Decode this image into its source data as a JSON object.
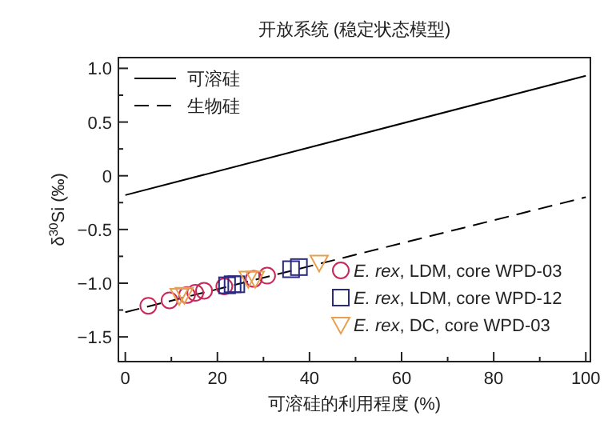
{
  "chart_data": {
    "type": "scatter",
    "title": "开放系统 (稳定状态模型)",
    "xlabel": "可溶硅的利用程度 (%)",
    "ylabel": "δ$^{30}$Si (‰)",
    "xlim": [
      -1.5,
      101
    ],
    "ylim": [
      -1.73,
      1.1
    ],
    "xticks": [
      0,
      {
        "value": 10,
        "label": null
      },
      20,
      {
        "value": 30,
        "label": null
      },
      40,
      {
        "value": 50,
        "label": null
      },
      60,
      {
        "value": 70,
        "label": null
      },
      80,
      {
        "value": 90,
        "label": null
      },
      100
    ],
    "yticks": [
      {
        "value": -1.5,
        "label": "−1.5"
      },
      {
        "value": -1.25,
        "label": null
      },
      {
        "value": -1.0,
        "label": "−1.0"
      },
      {
        "value": -0.75,
        "label": null
      },
      {
        "value": -0.5,
        "label": "−0.5"
      },
      {
        "value": -0.25,
        "label": null
      },
      0,
      {
        "value": 0.25,
        "label": null
      },
      {
        "value": 0.5,
        "label": "0.5"
      },
      {
        "value": 0.75,
        "label": null
      },
      {
        "value": 1.0,
        "label": "1.0"
      }
    ],
    "grid": false,
    "legend": "top left",
    "series": [
      {
        "name": "可溶硅",
        "type": "line",
        "line_style": "solid",
        "color": "#000000",
        "x": [
          0,
          100
        ],
        "values": [
          -0.18,
          0.93
        ]
      },
      {
        "name": "生物硅",
        "type": "line",
        "line_style": "dashed",
        "color": "#000000",
        "x": [
          0,
          100
        ],
        "values": [
          -1.27,
          -0.2
        ]
      },
      {
        "name": "*E. rex*, LDM, core WPD-03",
        "marker": "circle",
        "color": "#c8285a",
        "x": [
          5.0,
          9.6,
          13.4,
          15.2,
          17.1,
          21.5,
          27.9,
          30.8
        ],
        "values": [
          -1.21,
          -1.16,
          -1.11,
          -1.09,
          -1.07,
          -1.03,
          -0.96,
          -0.93
        ]
      },
      {
        "name": "*E. rex*, LDM, core WPD-12",
        "marker": "square",
        "color": "#2a2a80",
        "x": [
          22.1,
          23.3,
          24.1,
          36.0,
          37.7
        ],
        "values": [
          -1.02,
          -1.01,
          -1.01,
          -0.87,
          -0.85
        ]
      },
      {
        "name": "*E. rex*, DC, core WPD-03",
        "marker": "triangle",
        "color": "#e8a050",
        "x": [
          11.7,
          12.8,
          26.7,
          28.2,
          42.1
        ],
        "values": [
          -1.12,
          -1.11,
          -0.96,
          -0.96,
          -0.81
        ]
      }
    ]
  }
}
